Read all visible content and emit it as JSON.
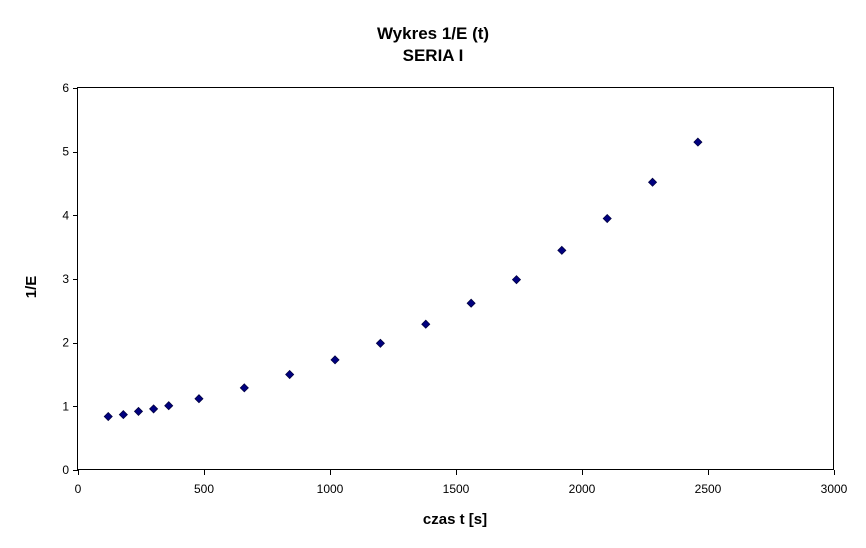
{
  "chart_data": {
    "type": "scatter",
    "title": "Wykres 1/E (t)",
    "subtitle": "SERIA I",
    "xlabel": "czas t [s]",
    "ylabel": "1/E",
    "xlim": [
      0,
      3000
    ],
    "ylim": [
      0,
      6
    ],
    "x_ticks": [
      0,
      500,
      1000,
      1500,
      2000,
      2500,
      3000
    ],
    "y_ticks": [
      0,
      1,
      2,
      3,
      4,
      5,
      6
    ],
    "grid": false,
    "legend": "none",
    "marker": "diamond",
    "marker_color": "#000080",
    "series": [
      {
        "x": [
          120,
          180,
          240,
          300,
          360,
          480,
          660,
          840,
          1020,
          1200,
          1380,
          1560,
          1740,
          1920,
          2100,
          2280,
          2460
        ],
        "y": [
          0.84,
          0.87,
          0.92,
          0.96,
          1.01,
          1.12,
          1.29,
          1.5,
          1.73,
          1.99,
          2.29,
          2.62,
          2.99,
          3.45,
          3.95,
          4.52,
          5.15
        ]
      }
    ]
  }
}
